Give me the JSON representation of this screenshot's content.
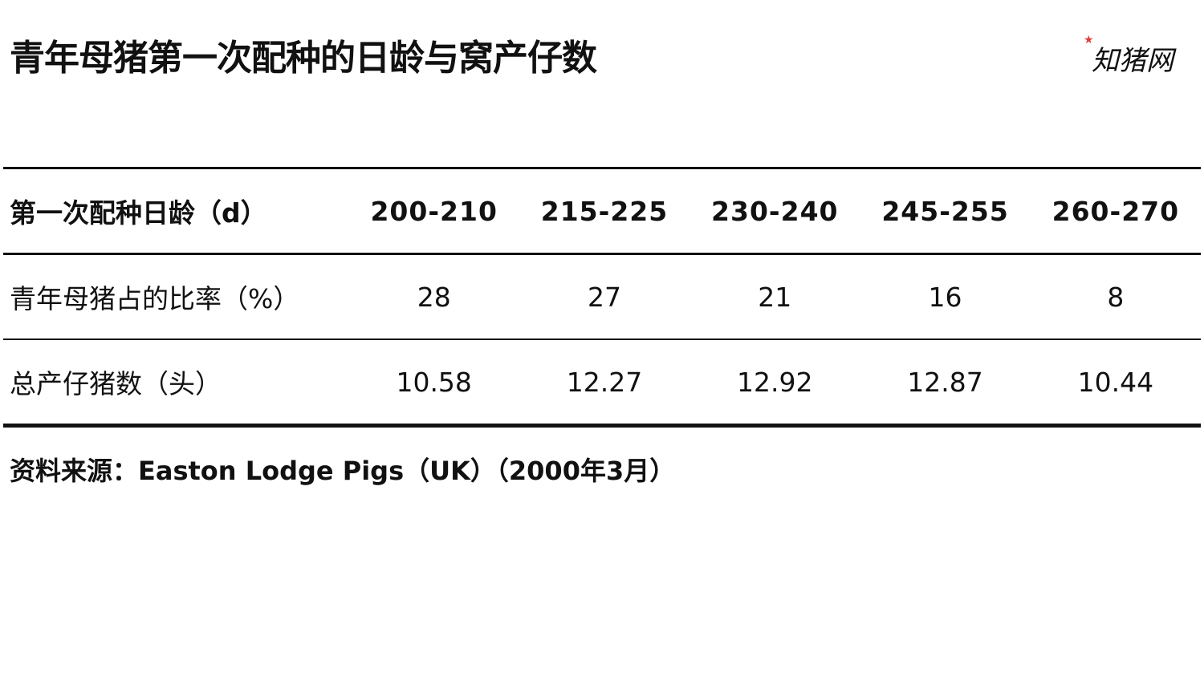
{
  "title": "青年母猪第一次配种的日龄与窝产仔数",
  "logo": {
    "text": "知猪网",
    "accent_color": "#e03a3a"
  },
  "table": {
    "columns": [
      "第一次配种日龄（d）",
      "200-210",
      "215-225",
      "230-240",
      "245-255",
      "260-270"
    ],
    "rows": [
      {
        "label": "青年母猪占的比率（%）",
        "values": [
          "28",
          "27",
          "21",
          "16",
          "8"
        ]
      },
      {
        "label": "总产仔猪数（头）",
        "values": [
          "10.58",
          "12.27",
          "12.92",
          "12.87",
          "10.44"
        ]
      }
    ]
  },
  "source": "资料来源：Easton Lodge Pigs（UK）（2000年3月）"
}
